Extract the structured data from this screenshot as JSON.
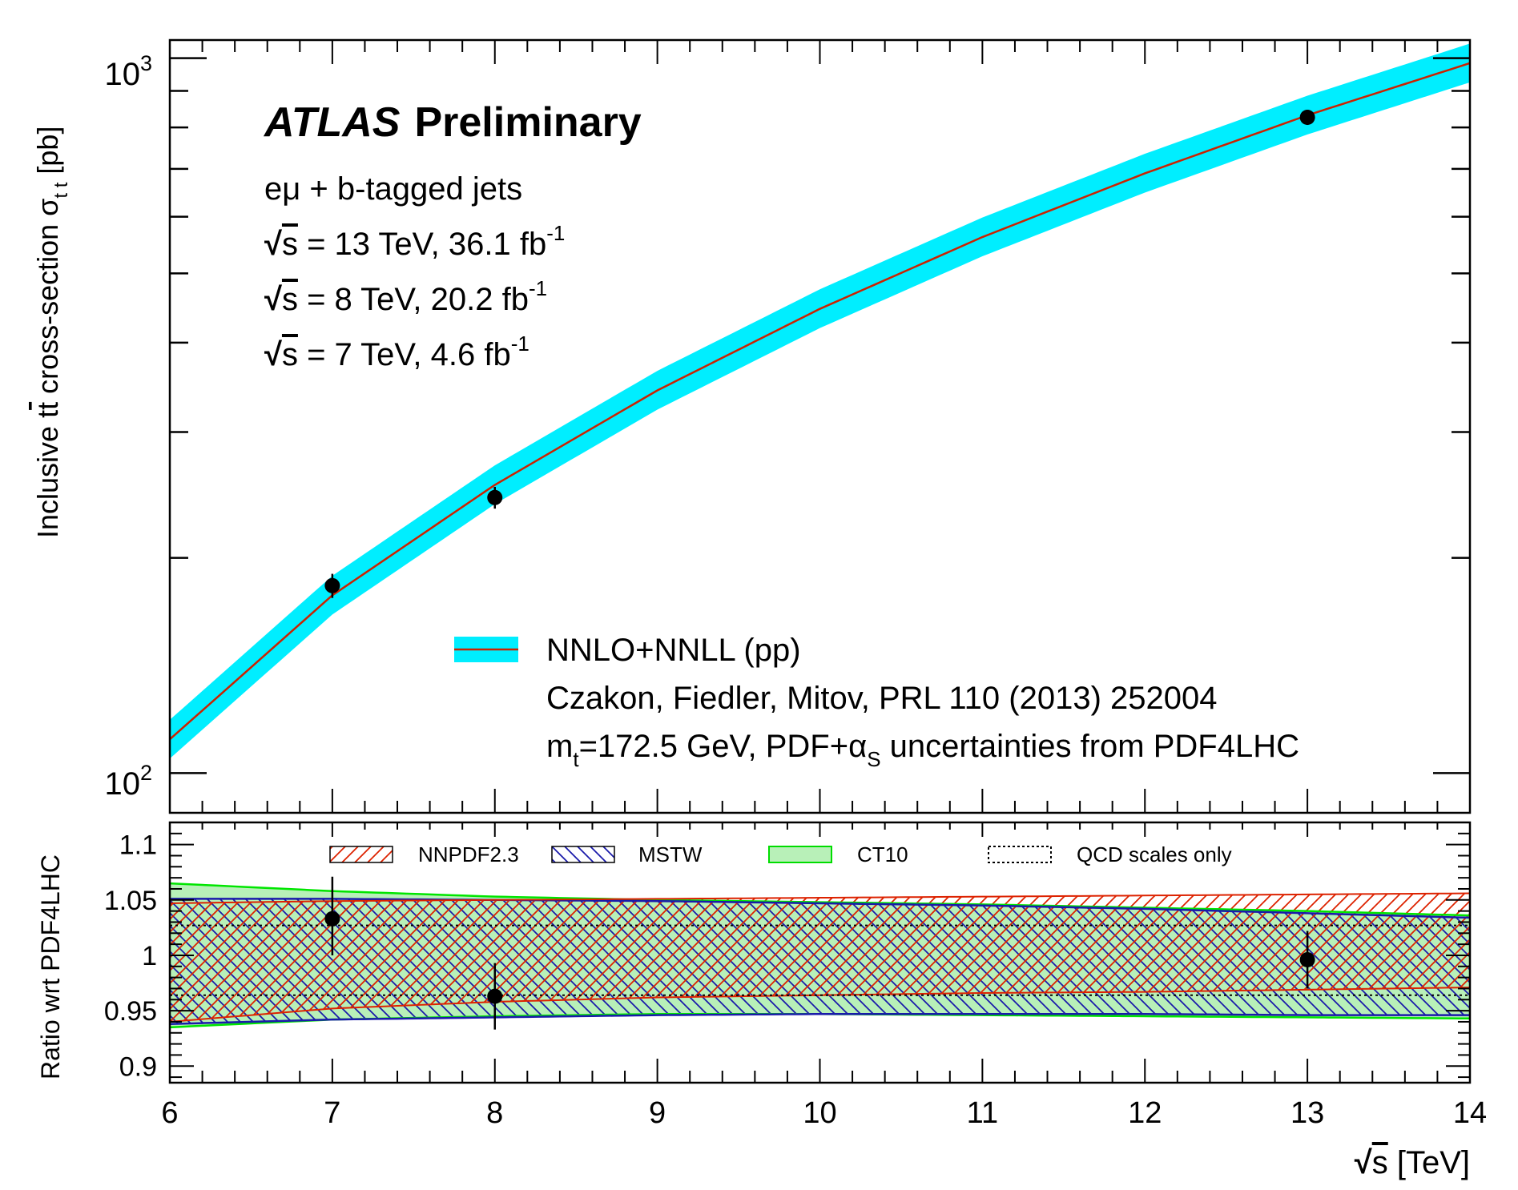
{
  "chart_data": [
    {
      "type": "line",
      "title": "ATLAS Preliminary",
      "experiment": "ATLAS",
      "status": "Preliminary",
      "ylabel": "Inclusive tt cross-section σ_tt [pb]",
      "ylabel_parts": {
        "main": "Inclusive t",
        "tbar": "t",
        "rest": " cross-section σ",
        "sub": "t t",
        "unit": " [pb]"
      },
      "yscale": "log",
      "ylim": [
        88,
        1060
      ],
      "xlim": [
        6,
        14
      ],
      "ytick_labels": [
        {
          "value": 100,
          "base": "10",
          "exp": "2"
        },
        {
          "value": 1000,
          "base": "10",
          "exp": "3"
        }
      ],
      "annotations": [
        {
          "id": "channel",
          "parts": [
            "eμ + b-tagged jets"
          ]
        },
        {
          "id": "run13",
          "parts": [
            "√",
            "s",
            " = 13 TeV, 36.1 fb",
            "-1"
          ]
        },
        {
          "id": "run8",
          "parts": [
            "√",
            "s",
            " = 8 TeV, 20.2 fb",
            "-1"
          ]
        },
        {
          "id": "run7",
          "parts": [
            "√",
            "s",
            " = 7 TeV, 4.6 fb",
            "-1"
          ]
        }
      ],
      "theory": {
        "name": "NNLO+NNLL (pp)",
        "reference": "Czakon, Fiedler, Mitov, PRL 110 (2013) 252004",
        "note_parts": [
          "m",
          "t",
          "=172.5 GeV, PDF+α",
          "S",
          " uncertainties from PDF4LHC"
        ],
        "x": [
          6.0,
          7.0,
          8.0,
          9.0,
          10.0,
          11.0,
          12.0,
          13.0,
          14.0
        ],
        "central": [
          111.5,
          177.3,
          253.0,
          343.0,
          446.0,
          562.0,
          690.0,
          832.0,
          984.0
        ],
        "band_low_frac": 0.94,
        "band_high_frac": 1.065,
        "band_color": "#00eeff",
        "line_color": "#cc2200"
      },
      "measurements": [
        {
          "x": 7,
          "y": 182.9,
          "err_low": 7.1,
          "err_high": 7.1
        },
        {
          "x": 8,
          "y": 242.9,
          "err_low": 8.5,
          "err_high": 8.5
        },
        {
          "x": 13,
          "y": 826.4,
          "err_low": 20.0,
          "err_high": 20.0
        }
      ]
    },
    {
      "type": "area",
      "ylabel": "Ratio wrt PDF4LHC",
      "xlabel_parts": [
        "√",
        "s",
        " [TeV]"
      ],
      "xlim": [
        6,
        14
      ],
      "ylim": [
        0.885,
        1.12
      ],
      "xticks": [
        6,
        7,
        8,
        9,
        10,
        11,
        12,
        13,
        14
      ],
      "xtick_labels": [
        "6",
        "7",
        "8",
        "9",
        "10",
        "11",
        "12",
        "13",
        "14"
      ],
      "yticks": [
        0.9,
        0.95,
        1,
        1.05,
        1.1
      ],
      "ytick_labels": [
        "0.9",
        "0.95",
        "1",
        "1.05",
        "1.1"
      ],
      "legend": [
        "NNPDF2.3",
        "MSTW",
        "CT10",
        "QCD scales only"
      ],
      "bands": {
        "x": [
          6,
          7,
          8,
          9,
          10,
          11,
          12,
          13,
          14
        ],
        "ct10": {
          "low": [
            0.935,
            0.942,
            0.945,
            0.947,
            0.947,
            0.946,
            0.945,
            0.944,
            0.943
          ],
          "high": [
            1.065,
            1.058,
            1.053,
            1.05,
            1.048,
            1.046,
            1.043,
            1.04,
            1.036
          ],
          "color": "#00e600"
        },
        "mstw": {
          "low": [
            0.938,
            0.942,
            0.944,
            0.946,
            0.947,
            0.947,
            0.947,
            0.946,
            0.946
          ],
          "high": [
            1.051,
            1.051,
            1.05,
            1.049,
            1.047,
            1.045,
            1.042,
            1.038,
            1.034
          ],
          "color": "#1a1aaa"
        },
        "nnpdf": {
          "low": [
            0.94,
            0.952,
            0.958,
            0.962,
            0.964,
            0.966,
            0.967,
            0.969,
            0.971
          ],
          "high": [
            1.047,
            1.049,
            1.05,
            1.051,
            1.052,
            1.053,
            1.054,
            1.055,
            1.056
          ],
          "color": "#dd2200"
        },
        "qcd_scales": {
          "low": 0.964,
          "high": 1.027
        }
      },
      "measurements": [
        {
          "x": 7,
          "y": 1.033,
          "err_low": 0.033,
          "err_high": 0.038
        },
        {
          "x": 8,
          "y": 0.963,
          "err_low": 0.03,
          "err_high": 0.03
        },
        {
          "x": 13,
          "y": 0.996,
          "err_low": 0.026,
          "err_high": 0.026
        }
      ]
    }
  ]
}
